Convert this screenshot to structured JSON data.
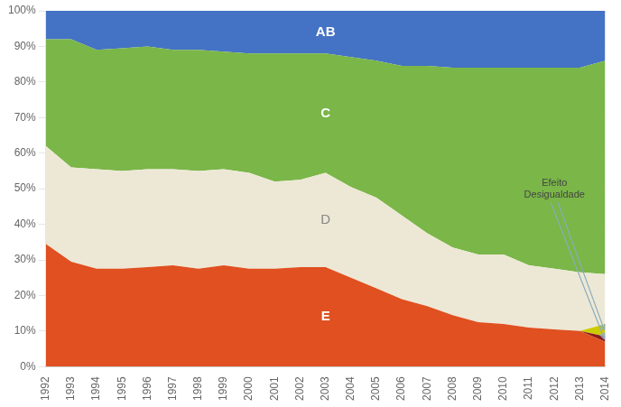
{
  "chart_data": {
    "type": "area",
    "stacked": true,
    "x": [
      1992,
      1993,
      1994,
      1995,
      1996,
      1997,
      1998,
      1999,
      2000,
      2001,
      2002,
      2003,
      2004,
      2005,
      2006,
      2007,
      2008,
      2009,
      2010,
      2011,
      2012,
      2013,
      2014
    ],
    "xlim": [
      1992,
      2014
    ],
    "xticks": [
      1992,
      1993,
      1994,
      1995,
      1996,
      1997,
      1998,
      1999,
      2000,
      2001,
      2002,
      2003,
      2004,
      2005,
      2006,
      2007,
      2008,
      2009,
      2010,
      2011,
      2012,
      2013,
      2014
    ],
    "ylim": [
      0,
      100
    ],
    "yticks": [
      {
        "value": 0,
        "label": "0%"
      },
      {
        "value": 10,
        "label": "10%"
      },
      {
        "value": 20,
        "label": "20%"
      },
      {
        "value": 30,
        "label": "30%"
      },
      {
        "value": 40,
        "label": "40%"
      },
      {
        "value": 50,
        "label": "50%"
      },
      {
        "value": 60,
        "label": "60%"
      },
      {
        "value": 70,
        "label": "70%"
      },
      {
        "value": 80,
        "label": "80%"
      },
      {
        "value": 90,
        "label": "90%"
      },
      {
        "value": 100,
        "label": "100%"
      }
    ],
    "grid": true,
    "series": [
      {
        "name": "E",
        "color": "#e05020",
        "values": [
          34.5,
          29.5,
          27.5,
          27.5,
          28.0,
          28.5,
          27.5,
          28.5,
          27.5,
          27.5,
          28.0,
          28.0,
          25.0,
          22.0,
          19.0,
          17.0,
          14.5,
          12.5,
          12.0,
          11.0,
          10.5,
          10.0,
          7.0
        ]
      },
      {
        "color": "#8b1a1a",
        "values": [
          0.0,
          0.0,
          0.0,
          0.0,
          0.0,
          0.0,
          0.0,
          0.0,
          0.0,
          0.0,
          0.0,
          0.0,
          0.0,
          0.0,
          0.0,
          0.0,
          0.0,
          0.0,
          0.0,
          0.0,
          0.0,
          0.0,
          1.5
        ]
      },
      {
        "color": "#cccc00",
        "values": [
          0.0,
          0.0,
          0.0,
          0.0,
          0.0,
          0.0,
          0.0,
          0.0,
          0.0,
          0.0,
          0.0,
          0.0,
          0.0,
          0.0,
          0.0,
          0.0,
          0.0,
          0.0,
          0.0,
          0.0,
          0.0,
          0.0,
          3.5
        ]
      },
      {
        "name": "D",
        "color": "#ede8d5",
        "values": [
          27.5,
          26.5,
          28.0,
          27.5,
          27.5,
          27.0,
          27.5,
          27.0,
          27.0,
          24.5,
          24.5,
          26.5,
          25.5,
          25.5,
          23.5,
          20.5,
          19.0,
          19.0,
          19.5,
          17.5,
          17.0,
          16.5,
          14.0
        ]
      },
      {
        "name": "C",
        "color": "#7ab648",
        "values": [
          30.0,
          36.0,
          33.5,
          34.5,
          34.5,
          33.5,
          34.0,
          33.0,
          33.5,
          36.0,
          35.5,
          33.5,
          36.5,
          38.5,
          42.0,
          47.0,
          50.5,
          52.5,
          52.5,
          55.5,
          56.5,
          57.5,
          60.0
        ]
      },
      {
        "name": "AB",
        "color": "#4472c4",
        "values": [
          8.0,
          8.0,
          11.0,
          10.5,
          10.0,
          11.0,
          11.0,
          11.5,
          12.0,
          12.0,
          12.0,
          12.0,
          13.0,
          14.0,
          15.5,
          15.5,
          16.0,
          16.0,
          16.0,
          16.0,
          16.0,
          16.0,
          14.0
        ]
      }
    ],
    "annotations": [
      "Efeito\nDesigualdade"
    ]
  }
}
